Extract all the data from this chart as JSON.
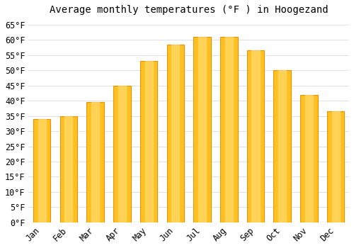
{
  "title": "Average monthly temperatures (°F ) in Hoogezand",
  "months": [
    "Jan",
    "Feb",
    "Mar",
    "Apr",
    "May",
    "Jun",
    "Jul",
    "Aug",
    "Sep",
    "Oct",
    "Nov",
    "Dec"
  ],
  "values": [
    34,
    35,
    39.5,
    45,
    53,
    58.5,
    61,
    61,
    56.5,
    50,
    42,
    36.5
  ],
  "bar_color": "#FFC020",
  "bar_edge_color": "#E8940A",
  "background_color": "#ffffff",
  "grid_color": "#E0E0E0",
  "ylim": [
    0,
    67
  ],
  "yticks": [
    0,
    5,
    10,
    15,
    20,
    25,
    30,
    35,
    40,
    45,
    50,
    55,
    60,
    65
  ],
  "title_fontsize": 10,
  "tick_fontsize": 8.5
}
